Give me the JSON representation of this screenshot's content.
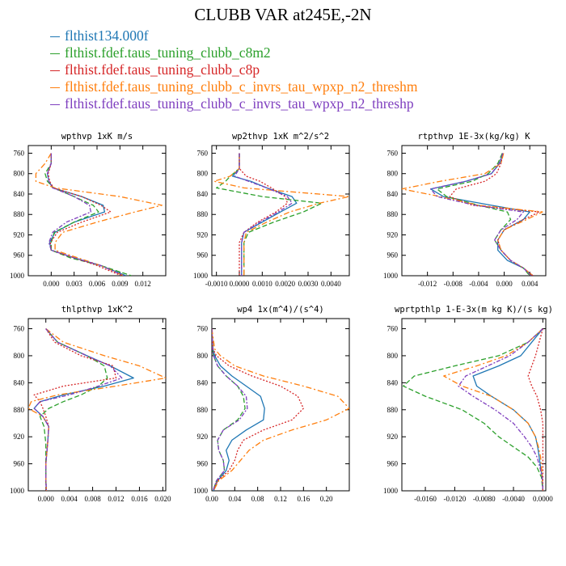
{
  "title": "CLUBB VAR at245E,-2N",
  "legend": [
    {
      "label": "flthist134.000f",
      "color": "#1f77b4"
    },
    {
      "label": "flthist.fdef.taus_tuning_clubb_c8m2",
      "color": "#2ca02c"
    },
    {
      "label": "flthist.fdef.taus_tuning_clubb_c8p",
      "color": "#d62728"
    },
    {
      "label": "flthist.fdef.taus_tuning_clubb_c_invrs_tau_wpxp_n2_threshm",
      "color": "#ff7f0e"
    },
    {
      "label": "flthist.fdef.taus_tuning_clubb_c_invrs_tau_wpxp_n2_threshp",
      "color": "#7f3fbf"
    }
  ],
  "chart_data": [
    {
      "type": "line",
      "title": "wpthvp  1xK m/s",
      "xlim": [
        -0.003,
        0.015
      ],
      "xticks": [
        0.0,
        0.003,
        0.006,
        0.009,
        0.012
      ],
      "xticklabels": [
        "0.000",
        "0.003",
        "0.006",
        "0.009",
        "0.012"
      ],
      "ylim": [
        1000,
        745
      ],
      "yticks": [
        760,
        800,
        840,
        880,
        920,
        960,
        1000
      ],
      "y": [
        760,
        780,
        800,
        815,
        828,
        845,
        862,
        875,
        895,
        915,
        935,
        950,
        965,
        980,
        1000
      ],
      "series": [
        {
          "values": [
            0.0,
            0.0,
            -0.0005,
            -0.0003,
            0.0002,
            0.004,
            0.0068,
            0.007,
            0.003,
            0.0005,
            -0.0002,
            0.0,
            0.003,
            0.0065,
            0.0098
          ]
        },
        {
          "values": [
            0.0,
            0.0,
            -0.0008,
            -0.0005,
            0.0003,
            0.003,
            0.0055,
            0.0062,
            0.003,
            0.0004,
            0.0,
            0.0,
            0.0025,
            0.0065,
            0.0105
          ]
        },
        {
          "values": [
            0.0,
            0.0,
            -0.0004,
            -0.0002,
            0.0003,
            0.004,
            0.0065,
            0.0078,
            0.004,
            0.0008,
            -0.0001,
            0.0,
            0.003,
            0.006,
            0.0092
          ]
        },
        {
          "values": [
            0.0,
            -0.0008,
            -0.002,
            -0.002,
            0.0005,
            0.009,
            0.0145,
            0.011,
            0.006,
            0.0015,
            0.0005,
            0.0005,
            0.0035,
            0.0065,
            0.0095
          ]
        },
        {
          "values": [
            0.0,
            0.0,
            -0.0005,
            -0.0003,
            0.0002,
            0.003,
            0.005,
            0.0052,
            0.002,
            0.0002,
            -0.0003,
            0.0,
            0.003,
            0.0065,
            0.0095
          ]
        }
      ]
    },
    {
      "type": "line",
      "title": "wp2thvp  1xK m^2/s^2",
      "xlim": [
        -0.0012,
        0.0048
      ],
      "xticks": [
        -0.001,
        0.0,
        0.001,
        0.002,
        0.003,
        0.004
      ],
      "xticklabels": [
        "-0.0010",
        "0.0000",
        "0.0010",
        "0.0020",
        "0.0030",
        "0.0040"
      ],
      "ylim": [
        1000,
        745
      ],
      "yticks": [
        760,
        800,
        840,
        880,
        920,
        960,
        1000
      ],
      "y": [
        760,
        790,
        805,
        815,
        828,
        845,
        858,
        875,
        895,
        915,
        935,
        955,
        975,
        1000
      ],
      "series": [
        {
          "values": [
            0.0,
            0.0,
            -0.0003,
            0.0005,
            0.0012,
            0.0023,
            0.0025,
            0.0018,
            0.001,
            0.0002,
            0.0001,
            0.0001,
            0.0001,
            0.0001
          ]
        },
        {
          "values": [
            0.0,
            0.0,
            -0.0004,
            -0.0006,
            -0.001,
            0.001,
            0.0036,
            0.0028,
            0.0015,
            0.0004,
            0.0002,
            0.0002,
            0.0002,
            0.0002
          ]
        },
        {
          "values": [
            0.0,
            0.0,
            0.0003,
            0.0009,
            0.0014,
            0.002,
            0.0021,
            0.0016,
            0.0008,
            0.0002,
            0.0,
            0.0,
            0.0,
            0.0
          ]
        },
        {
          "values": [
            0.0,
            0.0,
            -0.0004,
            -0.0011,
            0.0002,
            0.0048,
            0.0035,
            0.0022,
            0.0012,
            0.0003,
            0.0002,
            0.0002,
            0.0002,
            0.0002
          ]
        },
        {
          "values": [
            0.0,
            0.0,
            -0.0002,
            0.0004,
            0.0012,
            0.0021,
            0.0023,
            0.0017,
            0.0009,
            0.0002,
            0.0001,
            0.0001,
            0.0001,
            0.0001
          ]
        }
      ]
    },
    {
      "type": "line",
      "title": "rtpthvp  1E-3x(kg/kg) K",
      "xlim": [
        -0.016,
        0.0065
      ],
      "xticks": [
        -0.012,
        -0.008,
        -0.004,
        0.0,
        0.004
      ],
      "xticklabels": [
        "-0.012",
        "-0.008",
        "-0.004",
        "0.000",
        "0.004"
      ],
      "ylim": [
        1000,
        745
      ],
      "yticks": [
        760,
        800,
        840,
        880,
        920,
        960,
        1000
      ],
      "y": [
        760,
        780,
        800,
        815,
        830,
        845,
        862,
        875,
        890,
        910,
        930,
        950,
        970,
        985,
        1000
      ],
      "series": [
        {
          "values": [
            -0.0002,
            -0.0007,
            -0.002,
            -0.006,
            -0.0115,
            -0.0095,
            -0.002,
            0.004,
            0.003,
            0.0,
            -0.001,
            -0.001,
            0.0005,
            0.003,
            0.0045
          ]
        },
        {
          "values": [
            -0.0003,
            -0.001,
            -0.0025,
            -0.005,
            -0.0105,
            -0.009,
            -0.004,
            0.0005,
            0.001,
            -0.0005,
            -0.0015,
            -0.0005,
            0.001,
            0.003,
            0.004
          ]
        },
        {
          "values": [
            -0.0002,
            -0.0005,
            -0.0012,
            -0.003,
            -0.0075,
            -0.0085,
            -0.005,
            0.0055,
            0.003,
            0.0,
            -0.001,
            -0.0005,
            0.001,
            0.003,
            0.0045
          ]
        },
        {
          "values": [
            -0.0001,
            -0.0005,
            -0.003,
            -0.01,
            -0.016,
            -0.01,
            -0.004,
            0.006,
            0.0035,
            0.0,
            -0.001,
            -0.0005,
            0.001,
            0.003,
            0.0045
          ]
        },
        {
          "values": [
            -0.0002,
            -0.0008,
            -0.002,
            -0.006,
            -0.0115,
            -0.0105,
            -0.0045,
            0.003,
            0.002,
            -0.0005,
            -0.0015,
            -0.0005,
            0.001,
            0.003,
            0.0042
          ]
        }
      ]
    },
    {
      "type": "line",
      "title": "thlpthvp  1xK^2",
      "xlim": [
        -0.003,
        0.0205
      ],
      "xticks": [
        0.0,
        0.004,
        0.008,
        0.012,
        0.016,
        0.02
      ],
      "xticklabels": [
        "0.000",
        "0.004",
        "0.008",
        "0.012",
        "0.016",
        "0.020"
      ],
      "ylim": [
        1000,
        745
      ],
      "yticks": [
        760,
        800,
        840,
        880,
        920,
        960,
        1000
      ],
      "y": [
        760,
        780,
        800,
        815,
        833,
        845,
        858,
        868,
        878,
        890,
        905,
        930,
        960,
        985,
        1000
      ],
      "series": [
        {
          "values": [
            0.0,
            0.002,
            0.007,
            0.011,
            0.015,
            0.01,
            0.003,
            -0.001,
            -0.002,
            -0.0005,
            0.0005,
            0.0003,
            0.0,
            0.0,
            0.0001
          ]
        },
        {
          "values": [
            0.0,
            0.002,
            0.007,
            0.01,
            0.0105,
            0.009,
            0.006,
            0.003,
            0.0005,
            -0.001,
            -0.0003,
            0.0,
            0.0,
            0.0,
            0.0001
          ]
        },
        {
          "values": [
            0.0,
            0.0015,
            0.006,
            0.0115,
            0.012,
            0.003,
            -0.002,
            -0.001,
            -0.0005,
            0.0,
            0.0005,
            0.0003,
            0.0,
            0.0,
            0.0001
          ]
        },
        {
          "values": [
            0.0,
            0.003,
            0.01,
            0.016,
            0.0205,
            0.012,
            0.002,
            -0.0025,
            -0.003,
            -0.0005,
            0.0005,
            0.0003,
            0.0,
            0.0,
            0.0001
          ]
        },
        {
          "values": [
            0.0,
            0.002,
            0.007,
            0.011,
            0.013,
            0.009,
            0.004,
            -0.001,
            -0.002,
            -0.0005,
            0.0005,
            0.0003,
            0.0,
            0.0,
            0.0001
          ]
        }
      ]
    },
    {
      "type": "line",
      "title": "wp4  1x(m^4)/(s^4)",
      "xlim": [
        0,
        0.24
      ],
      "xticks": [
        0.0,
        0.04,
        0.08,
        0.12,
        0.16,
        0.2
      ],
      "xticklabels": [
        "0.00",
        "0.04",
        "0.08",
        "0.12",
        "0.16",
        "0.20"
      ],
      "ylim": [
        1000,
        745
      ],
      "yticks": [
        760,
        800,
        840,
        880,
        920,
        960,
        1000
      ],
      "y": [
        760,
        790,
        800,
        815,
        830,
        845,
        860,
        878,
        895,
        910,
        925,
        940,
        955,
        970,
        985,
        1000
      ],
      "series": [
        {
          "values": [
            0.0,
            0.002,
            0.005,
            0.015,
            0.035,
            0.06,
            0.085,
            0.092,
            0.09,
            0.06,
            0.035,
            0.025,
            0.03,
            0.025,
            0.01,
            0.003
          ]
        },
        {
          "values": [
            0.0,
            0.001,
            0.003,
            0.01,
            0.025,
            0.045,
            0.055,
            0.058,
            0.045,
            0.02,
            0.01,
            0.012,
            0.02,
            0.022,
            0.008,
            0.002
          ]
        },
        {
          "values": [
            0.0,
            0.002,
            0.008,
            0.03,
            0.07,
            0.12,
            0.15,
            0.16,
            0.14,
            0.09,
            0.055,
            0.045,
            0.04,
            0.03,
            0.01,
            0.003
          ]
        },
        {
          "values": [
            0.0,
            0.005,
            0.015,
            0.04,
            0.09,
            0.16,
            0.22,
            0.24,
            0.2,
            0.14,
            0.09,
            0.065,
            0.05,
            0.035,
            0.012,
            0.003
          ]
        },
        {
          "values": [
            0.0,
            0.001,
            0.003,
            0.01,
            0.025,
            0.045,
            0.06,
            0.062,
            0.048,
            0.02,
            0.01,
            0.012,
            0.02,
            0.022,
            0.008,
            0.002
          ]
        }
      ]
    },
    {
      "type": "line",
      "title": "wprtpthlp  1-E-3x(m kg K)/(s kg)",
      "xlim": [
        -0.0192,
        0.0004
      ],
      "xticks": [
        -0.016,
        -0.012,
        -0.008,
        -0.004,
        0.0
      ],
      "xticklabels": [
        "-0.0160",
        "-0.0120",
        "-0.0080",
        "-0.0040",
        "0.0000"
      ],
      "ylim": [
        1000,
        745
      ],
      "yticks": [
        760,
        800,
        840,
        880,
        920,
        960,
        1000
      ],
      "y": [
        760,
        780,
        800,
        815,
        830,
        845,
        860,
        880,
        900,
        920,
        935,
        950,
        965,
        980,
        1000
      ],
      "series": [
        {
          "values": [
            0.0,
            -0.0015,
            -0.003,
            -0.006,
            -0.0095,
            -0.009,
            -0.007,
            -0.004,
            -0.002,
            -0.001,
            -0.0007,
            -0.0005,
            -0.0003,
            -0.0001,
            0.0
          ]
        },
        {
          "values": [
            0.0,
            -0.002,
            -0.006,
            -0.012,
            -0.0175,
            -0.019,
            -0.016,
            -0.011,
            -0.008,
            -0.006,
            -0.004,
            -0.002,
            -0.0008,
            -0.0002,
            0.0
          ]
        },
        {
          "values": [
            0.0,
            -0.0005,
            -0.001,
            -0.0015,
            -0.002,
            -0.0015,
            -0.0008,
            -0.0003,
            0.0,
            0.0,
            0.0,
            0.0,
            0.0,
            0.0,
            0.0
          ]
        },
        {
          "values": [
            0.0,
            -0.002,
            -0.005,
            -0.009,
            -0.0135,
            -0.011,
            -0.007,
            -0.004,
            -0.002,
            -0.001,
            -0.0006,
            -0.0003,
            -0.0002,
            -0.0001,
            0.0
          ]
        },
        {
          "values": [
            0.0,
            -0.002,
            -0.0045,
            -0.0075,
            -0.0105,
            -0.0115,
            -0.0095,
            -0.0065,
            -0.004,
            -0.0025,
            -0.0015,
            -0.0008,
            -0.0004,
            -0.0001,
            0.0
          ]
        }
      ]
    }
  ]
}
